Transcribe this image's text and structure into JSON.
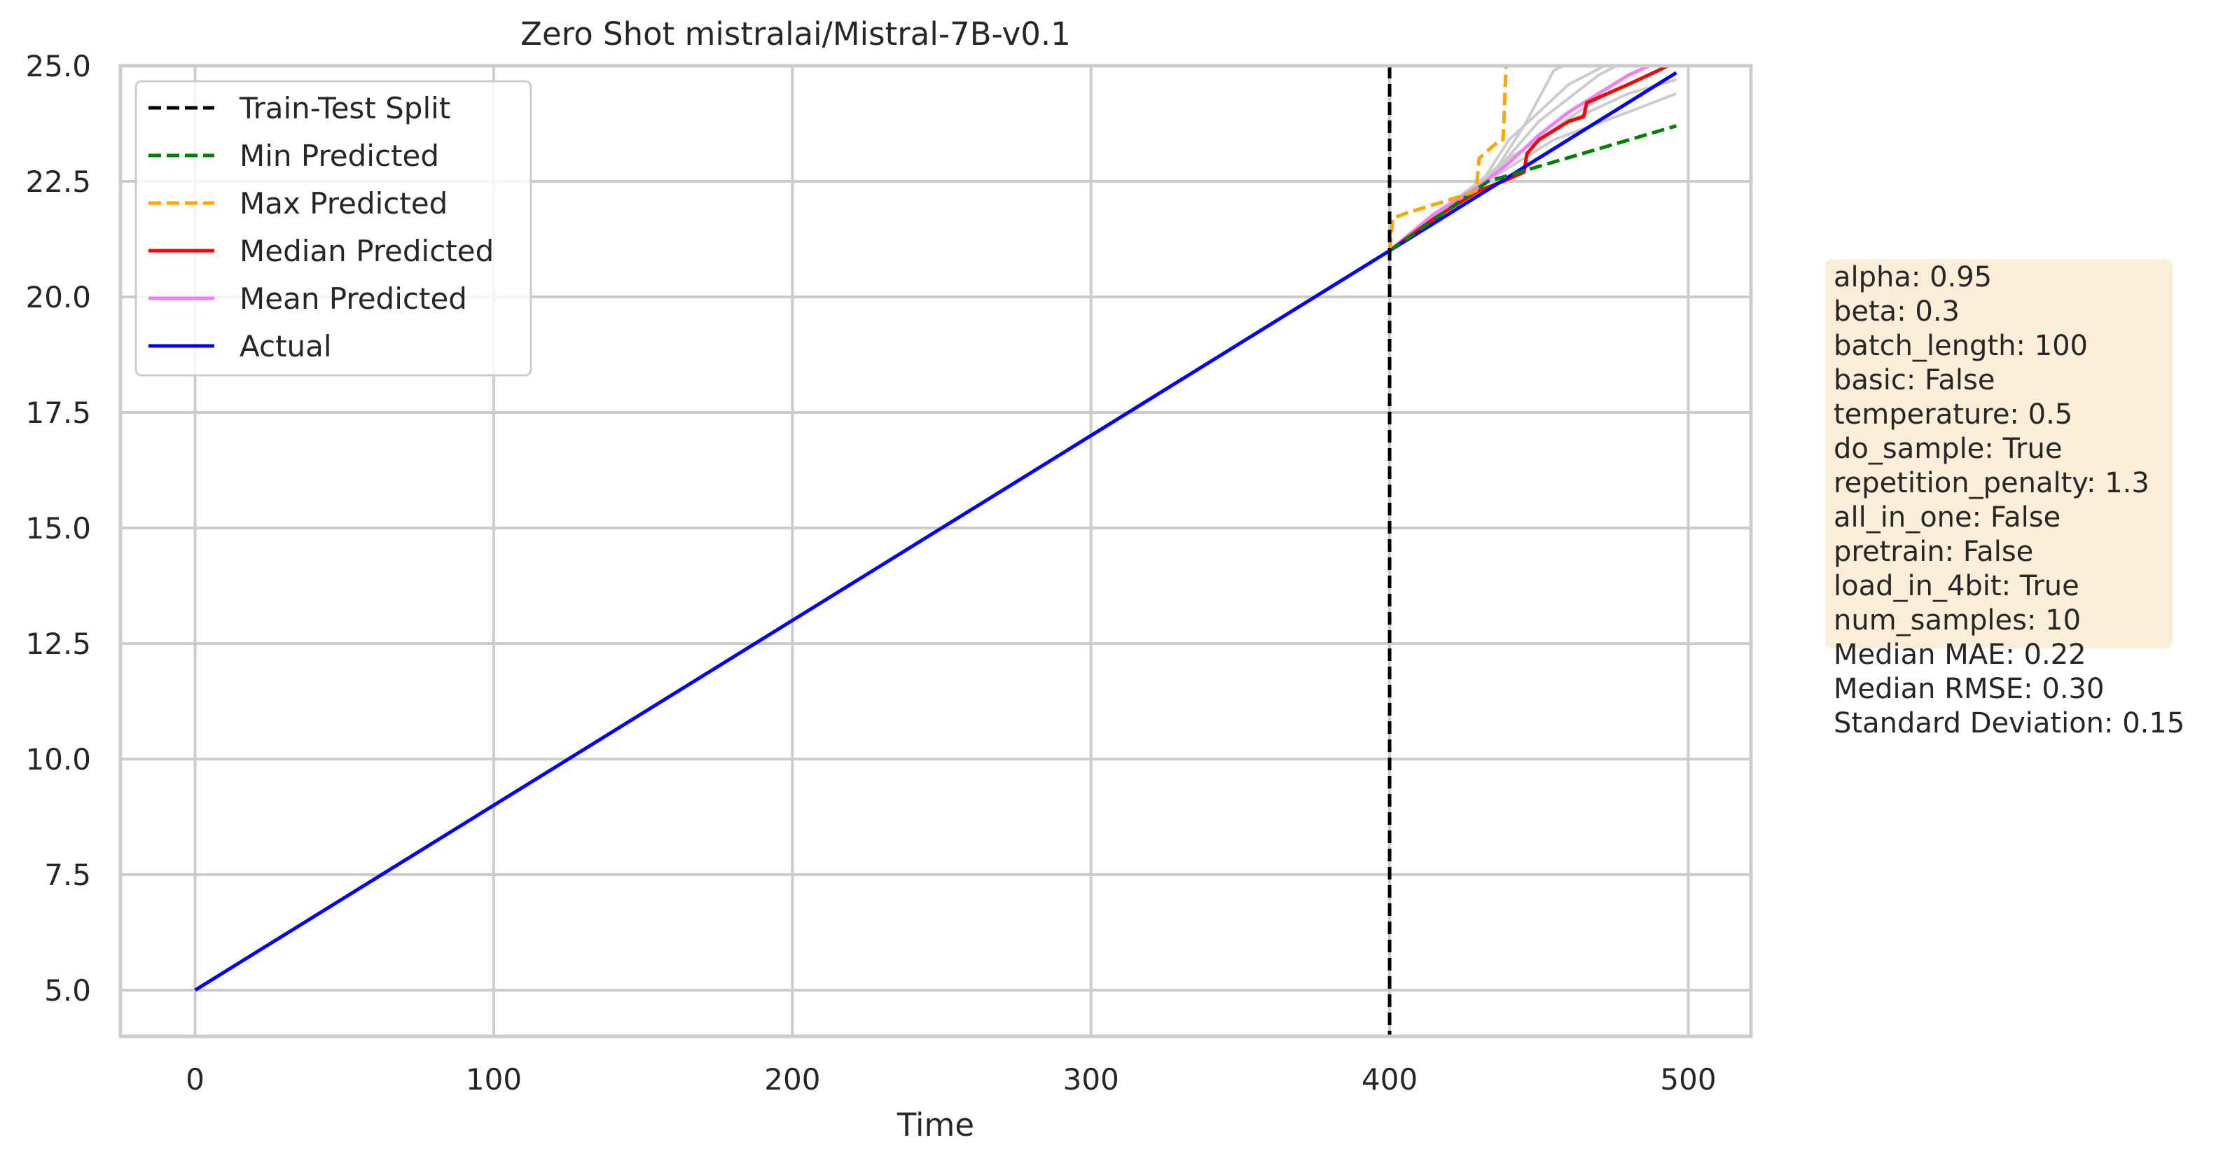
{
  "chart_data": {
    "type": "line",
    "title": "Zero Shot mistralai/Mistral-7B-v0.1",
    "xlabel": "Time",
    "ylabel": "",
    "xlim": [
      -25,
      521
    ],
    "ylim": [
      4,
      25
    ],
    "x_ticks": [
      0,
      100,
      200,
      300,
      400,
      500
    ],
    "y_ticks": [
      5.0,
      7.5,
      10.0,
      12.5,
      15.0,
      17.5,
      20.0,
      22.5,
      25.0
    ],
    "grid": true,
    "legend_position": "top-left",
    "legend": [
      {
        "label": "Train-Test Split",
        "color": "#000000",
        "style": "dashed"
      },
      {
        "label": "Min Predicted",
        "color": "#008000",
        "style": "dashed"
      },
      {
        "label": "Max Predicted",
        "color": "#ffa500",
        "style": "dashed"
      },
      {
        "label": "Median Predicted",
        "color": "#ff0000",
        "style": "solid"
      },
      {
        "label": "Mean Predicted",
        "color": "#ee82ee",
        "style": "solid"
      },
      {
        "label": "Actual",
        "color": "#0000ff",
        "style": "solid"
      }
    ],
    "split_x": 400,
    "series": [
      {
        "name": "Actual",
        "color": "#0000ff",
        "style": "solid",
        "points": [
          [
            0,
            5.0
          ],
          [
            400,
            21.0
          ],
          [
            496,
            24.85
          ]
        ]
      },
      {
        "name": "Min Predicted",
        "color": "#008000",
        "style": "dashed",
        "points": [
          [
            400,
            21.0
          ],
          [
            433,
            22.5
          ],
          [
            496,
            23.7
          ]
        ]
      },
      {
        "name": "Max Predicted",
        "color": "#ffa500",
        "style": "dashed",
        "points": [
          [
            400,
            21.0
          ],
          [
            401,
            21.7
          ],
          [
            405,
            21.8
          ],
          [
            415,
            22.0
          ],
          [
            425,
            22.2
          ],
          [
            429,
            22.3
          ],
          [
            430,
            23.0
          ],
          [
            437,
            23.4
          ],
          [
            438,
            23.4
          ],
          [
            439,
            25.0
          ],
          [
            440,
            25.5
          ]
        ]
      },
      {
        "name": "Median Predicted",
        "color": "#ff0000",
        "style": "solid",
        "points": [
          [
            400,
            21.0
          ],
          [
            415,
            21.7
          ],
          [
            430,
            22.3
          ],
          [
            438,
            22.5
          ],
          [
            445,
            22.7
          ],
          [
            446,
            23.1
          ],
          [
            450,
            23.4
          ],
          [
            460,
            23.8
          ],
          [
            465,
            23.9
          ],
          [
            466,
            24.2
          ],
          [
            480,
            24.6
          ],
          [
            490,
            24.9
          ],
          [
            493,
            25.0
          ]
        ]
      },
      {
        "name": "Mean Predicted",
        "color": "#ee82ee",
        "style": "solid",
        "points": [
          [
            400,
            21.0
          ],
          [
            415,
            21.8
          ],
          [
            430,
            22.4
          ],
          [
            440,
            22.9
          ],
          [
            450,
            23.5
          ],
          [
            460,
            24.0
          ],
          [
            470,
            24.4
          ],
          [
            480,
            24.8
          ],
          [
            487,
            25.0
          ]
        ]
      }
    ],
    "sample_series": [
      {
        "color": "#cccccc",
        "points": [
          [
            400,
            21.0
          ],
          [
            430,
            22.4
          ],
          [
            440,
            23.4
          ],
          [
            460,
            24.6
          ],
          [
            472,
            25.0
          ]
        ]
      },
      {
        "color": "#cccccc",
        "points": [
          [
            400,
            21.0
          ],
          [
            433,
            22.5
          ],
          [
            445,
            23.7
          ],
          [
            455,
            24.9
          ],
          [
            458,
            25.0
          ]
        ]
      },
      {
        "color": "#cccccc",
        "points": [
          [
            400,
            21.0
          ],
          [
            435,
            22.6
          ],
          [
            455,
            23.4
          ],
          [
            480,
            24.0
          ],
          [
            496,
            24.4
          ]
        ]
      },
      {
        "color": "#cccccc",
        "points": [
          [
            400,
            21.0
          ],
          [
            438,
            22.9
          ],
          [
            450,
            23.8
          ],
          [
            470,
            24.8
          ],
          [
            476,
            25.0
          ]
        ]
      },
      {
        "color": "#cccccc",
        "points": [
          [
            400,
            21.0
          ],
          [
            440,
            23.0
          ],
          [
            460,
            23.8
          ],
          [
            480,
            24.4
          ],
          [
            496,
            24.7
          ]
        ]
      },
      {
        "color": "#cccccc",
        "points": [
          [
            400,
            21.0
          ],
          [
            445,
            23.2
          ],
          [
            470,
            24.3
          ],
          [
            490,
            24.9
          ],
          [
            494,
            25.0
          ]
        ]
      }
    ],
    "annotation_lines": [
      "alpha: 0.95",
      "beta: 0.3",
      "batch_length: 100",
      "basic: False",
      "temperature: 0.5",
      "do_sample: True",
      "repetition_penalty: 1.3",
      "all_in_one: False",
      "pretrain: False",
      "load_in_4bit: True",
      "num_samples: 10",
      "Median MAE: 0.22",
      "Median RMSE: 0.30",
      "Standard Deviation: 0.15"
    ],
    "annotation_color": "#f5deb3"
  }
}
